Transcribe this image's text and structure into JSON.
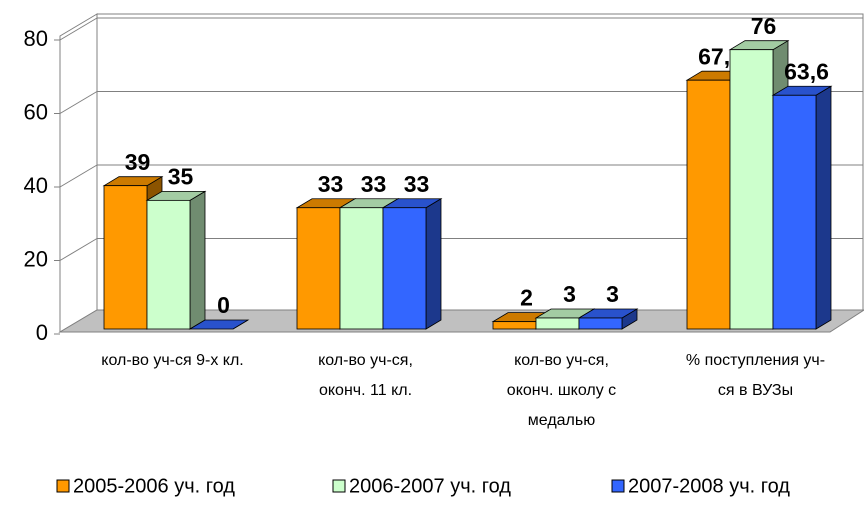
{
  "chart_data": {
    "type": "bar3d",
    "categories": [
      [
        "кол-во уч-ся 9-х кл."
      ],
      [
        "кол-во уч-ся,",
        "оконч. 11 кл."
      ],
      [
        "кол-во уч-ся,",
        "оконч. школу с",
        "медалью"
      ],
      [
        "% поступления уч-",
        "ся в ВУЗы"
      ]
    ],
    "series": [
      {
        "name": "2005-2006 уч. год",
        "color": "#ff9900",
        "values": [
          39,
          33,
          2,
          67.7
        ],
        "value_labels": [
          "39",
          "33",
          "2",
          "67,7"
        ]
      },
      {
        "name": "2006-2007 уч. год",
        "color": "#ccffcc",
        "values": [
          35,
          33,
          3,
          76
        ],
        "value_labels": [
          "35",
          "33",
          "3",
          "76"
        ]
      },
      {
        "name": "2007-2008 уч. год",
        "color": "#3366ff",
        "values": [
          0,
          33,
          3,
          63.6
        ],
        "value_labels": [
          "0",
          "33",
          "3",
          "63,6"
        ]
      }
    ],
    "ylim": [
      0,
      80
    ],
    "yticks": [
      0,
      20,
      40,
      60,
      80
    ],
    "grid": true,
    "legend": "bottom"
  }
}
